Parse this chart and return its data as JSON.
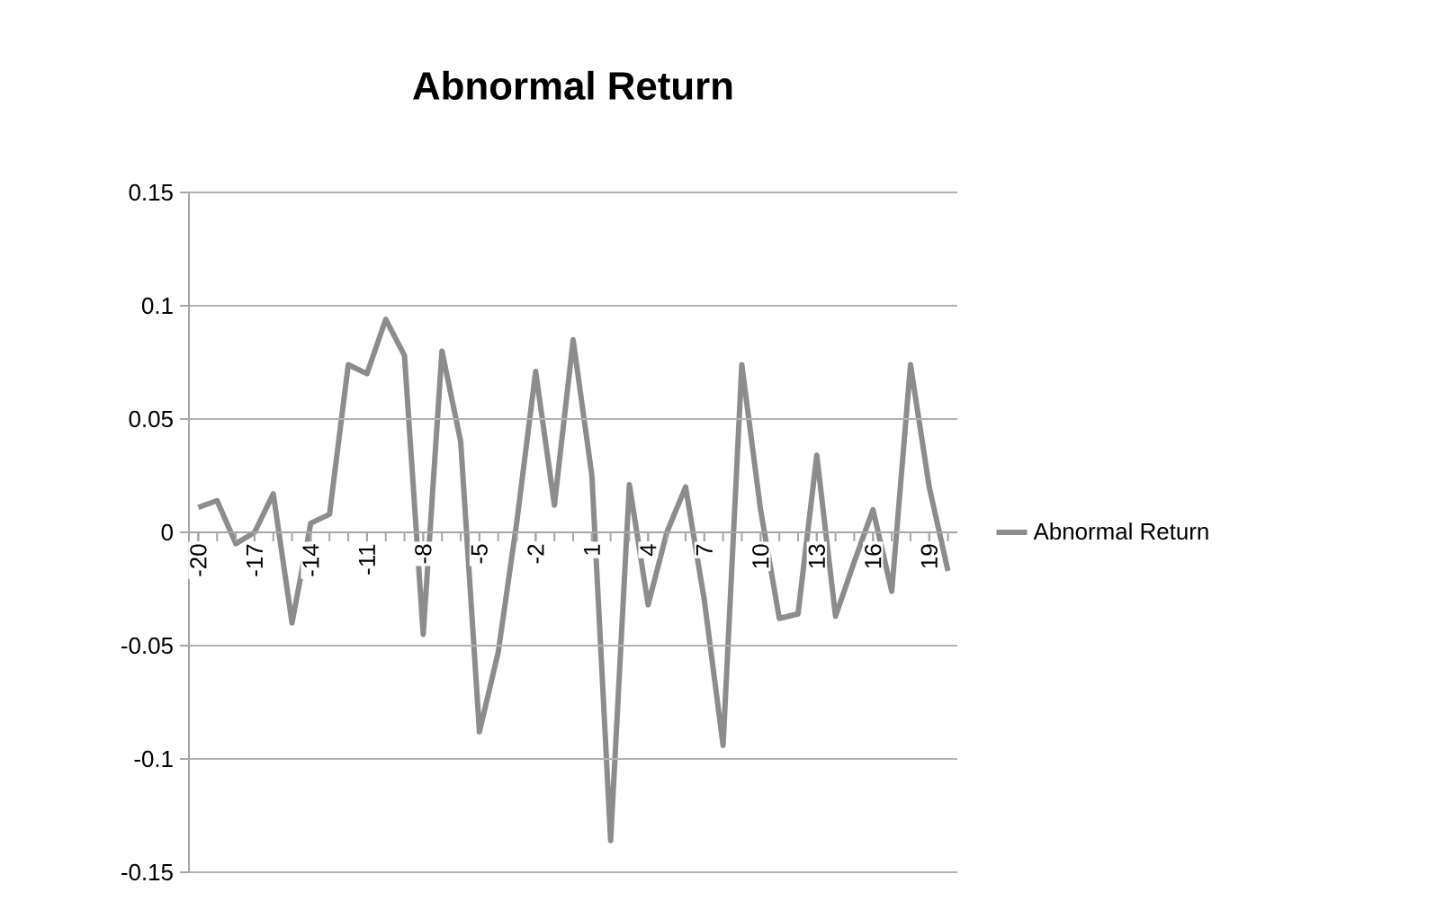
{
  "chart_data": {
    "type": "line",
    "title": "Abnormal Return",
    "categories": [
      "-20",
      null,
      null,
      "-17",
      null,
      null,
      "-14",
      null,
      null,
      "-11",
      null,
      null,
      "-8",
      null,
      null,
      "-5",
      null,
      null,
      "-2",
      null,
      null,
      "1",
      null,
      null,
      "4",
      null,
      null,
      "7",
      null,
      null,
      "10",
      null,
      null,
      "13",
      null,
      null,
      "16",
      null,
      null,
      "19",
      null
    ],
    "series": [
      {
        "name": "Abnormal Return",
        "color": "#8c8c8e",
        "values": [
          0.011,
          0.014,
          -0.005,
          0.0,
          0.017,
          -0.04,
          0.004,
          0.008,
          0.074,
          0.07,
          0.094,
          0.078,
          -0.045,
          0.08,
          0.04,
          -0.088,
          -0.053,
          0.005,
          0.071,
          0.012,
          0.085,
          0.025,
          -0.136,
          0.021,
          -0.032,
          0.0,
          0.02,
          -0.03,
          -0.094,
          0.074,
          0.01,
          -0.038,
          -0.036,
          0.034,
          -0.037,
          -0.013,
          0.01,
          -0.026,
          0.074,
          0.02,
          -0.017
        ]
      }
    ],
    "ylim": [
      -0.15,
      0.15
    ],
    "yticks": [
      -0.15,
      -0.1,
      -0.05,
      0,
      0.05,
      0.1,
      0.15
    ],
    "grid": "y",
    "legend": "right",
    "marker": "none",
    "line_style": "solid"
  }
}
